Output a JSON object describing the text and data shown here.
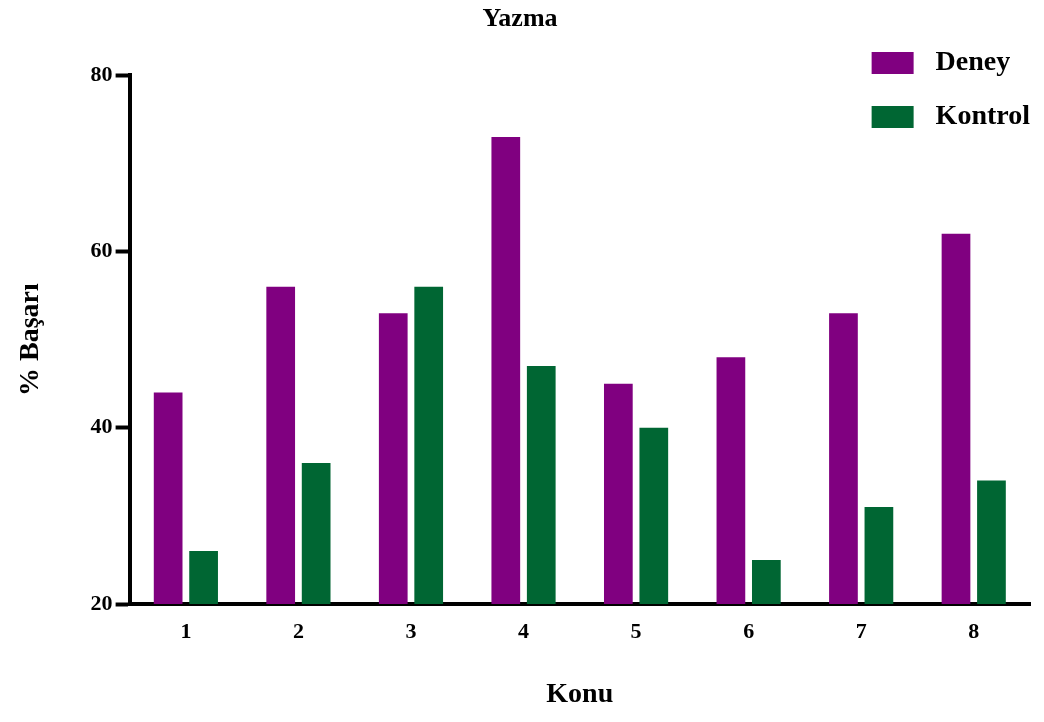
{
  "chart_data": {
    "type": "bar",
    "title": "Yazma",
    "xlabel": "Konu",
    "ylabel": "% Başarı",
    "categories": [
      "1",
      "2",
      "3",
      "4",
      "5",
      "6",
      "7",
      "8"
    ],
    "series": [
      {
        "name": "Deney",
        "color": "#800080",
        "values": [
          44,
          56,
          53,
          73,
          45,
          48,
          53,
          62
        ]
      },
      {
        "name": "Kontrol",
        "color": "#006633",
        "values": [
          26,
          36,
          56,
          47,
          40,
          25,
          31,
          34
        ]
      }
    ],
    "ylim": [
      20,
      80
    ],
    "yticks": [
      20,
      40,
      60,
      80
    ],
    "grid": false,
    "legend": "top right"
  }
}
